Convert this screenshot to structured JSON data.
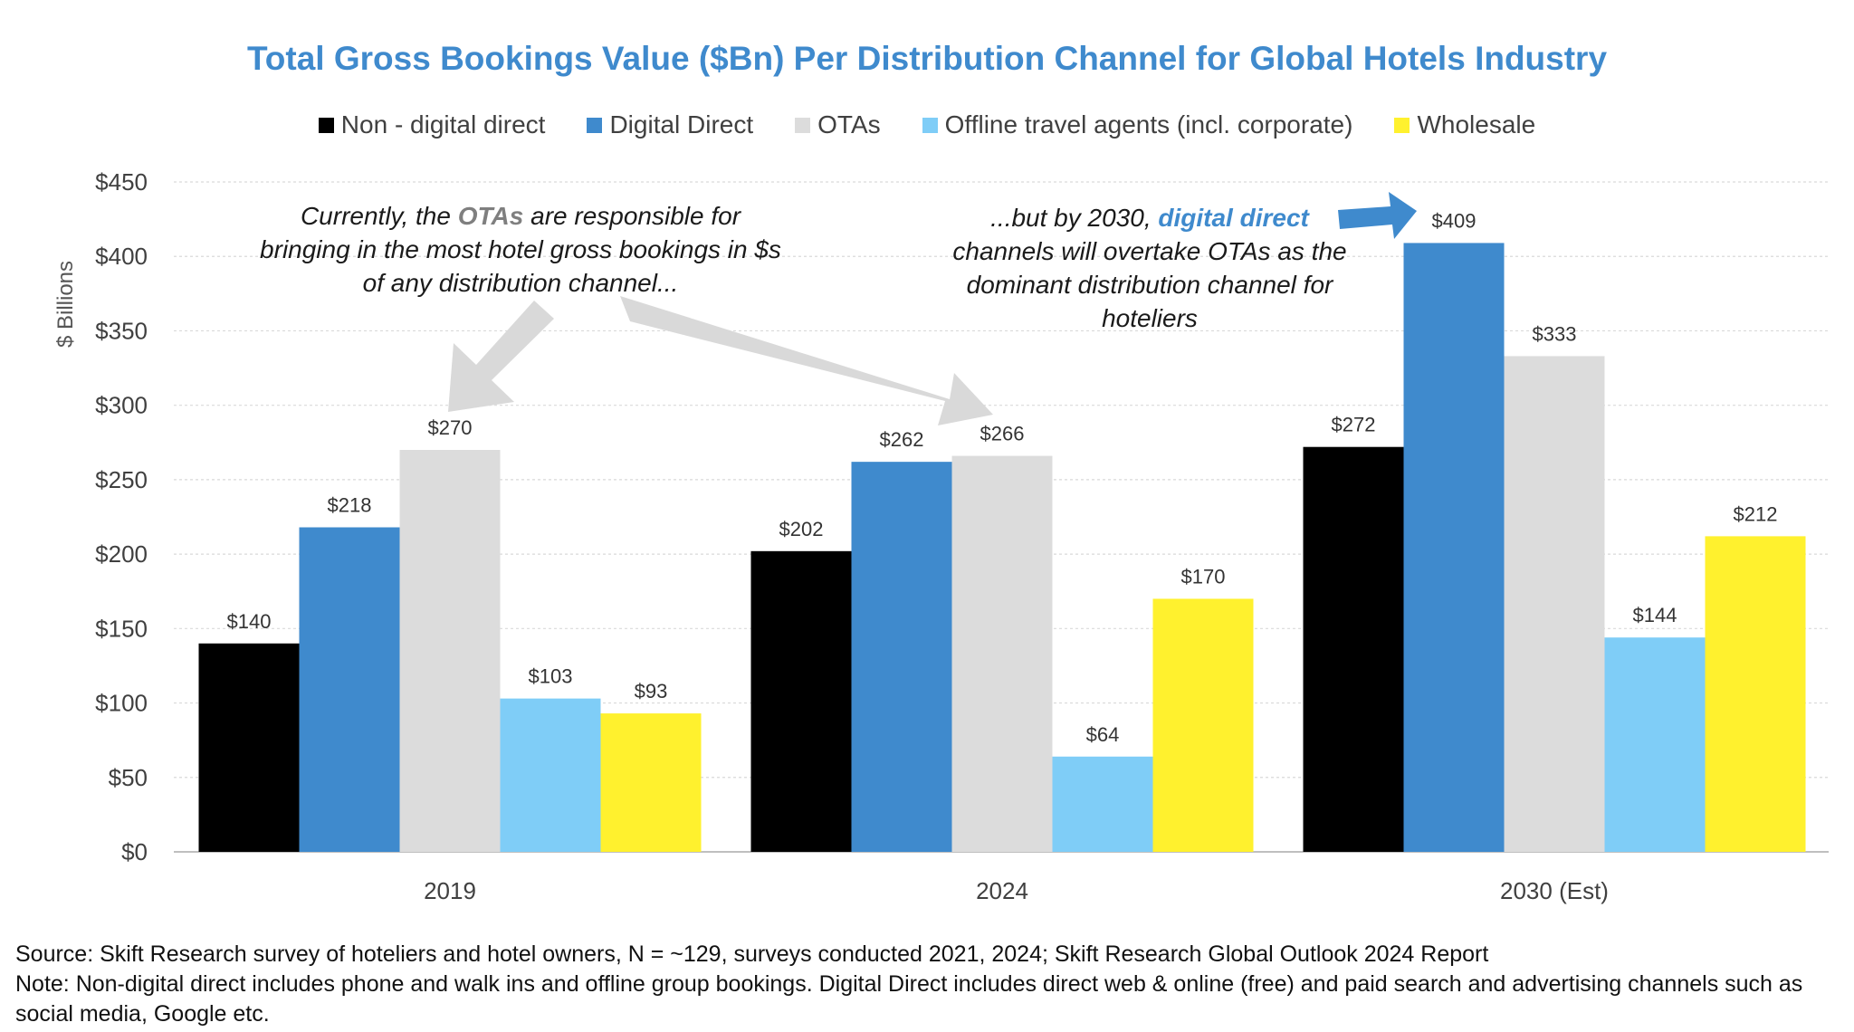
{
  "chart_data": {
    "type": "bar",
    "title": "Total Gross Bookings Value ($Bn) Per Distribution Channel for Global Hotels Industry",
    "ylabel": "$ Billions",
    "xlabel": "",
    "ylim": [
      0,
      450
    ],
    "yticks": [
      "$0",
      "$50",
      "$100",
      "$150",
      "$200",
      "$250",
      "$300",
      "$350",
      "$400",
      "$450"
    ],
    "categories": [
      "2019",
      "2024",
      "2030 (Est)"
    ],
    "series": [
      {
        "name": "Non - digital direct",
        "color": "#000000",
        "values": [
          140,
          202,
          272
        ],
        "labels": [
          "$140",
          "$202",
          "$272"
        ]
      },
      {
        "name": "Digital Direct",
        "color": "#3F8ACD",
        "values": [
          218,
          262,
          409
        ],
        "labels": [
          "$218",
          "$262",
          "$409"
        ]
      },
      {
        "name": "OTAs",
        "color": "#DCDCDC",
        "values": [
          270,
          266,
          333
        ],
        "labels": [
          "$270",
          "$266",
          "$333"
        ]
      },
      {
        "name": "Offline travel agents (incl. corporate)",
        "color": "#7FCDF7",
        "values": [
          103,
          64,
          144
        ],
        "labels": [
          "$103",
          "$64",
          "$144"
        ]
      },
      {
        "name": "Wholesale",
        "color": "#FFF12E",
        "values": [
          93,
          170,
          212
        ],
        "labels": [
          "$93",
          "$170",
          "$212"
        ]
      }
    ],
    "grid": true,
    "legend_position": "top"
  },
  "annotations": {
    "left": {
      "part1": "Currently, the ",
      "highlight": "OTAs",
      "part2": " are responsible for bringing in the most hotel gross bookings in $s of any distribution channel..."
    },
    "right": {
      "part1": "...but by 2030, ",
      "highlight": "digital direct",
      "part2": " channels will overtake OTAs as the dominant distribution channel for hoteliers"
    }
  },
  "footer": {
    "source": "Source: Skift Research survey of hoteliers and hotel owners, N = ~129, surveys conducted 2021, 2024; Skift Research Global Outlook 2024 Report",
    "note": "Note: Non-digital direct includes phone and walk ins and offline group bookings. Digital Direct includes direct web & online (free) and paid search and advertising channels such as social media, Google etc."
  }
}
